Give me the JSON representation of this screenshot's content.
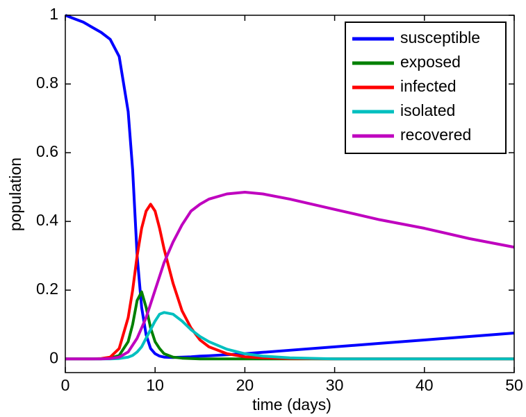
{
  "chart_data": {
    "type": "line",
    "x_label": "time (days)",
    "y_label": "population",
    "x": [
      0,
      1,
      2,
      3,
      4,
      5,
      6,
      7,
      7.5,
      8,
      8.5,
      9,
      9.5,
      10,
      10.5,
      11,
      12,
      13,
      14,
      15,
      16,
      18,
      20,
      22,
      25,
      30,
      35,
      40,
      45,
      50
    ],
    "series": [
      {
        "name": "susceptible",
        "color": "#0000ff",
        "values": [
          1,
          0.99,
          0.98,
          0.965,
          0.95,
          0.93,
          0.88,
          0.72,
          0.55,
          0.3,
          0.15,
          0.07,
          0.03,
          0.015,
          0.008,
          0.005,
          0.004,
          0.005,
          0.006,
          0.008,
          0.009,
          0.012,
          0.015,
          0.019,
          0.025,
          0.035,
          0.045,
          0.055,
          0.065,
          0.075
        ]
      },
      {
        "name": "exposed",
        "color": "#008000",
        "values": [
          0,
          0,
          0,
          0,
          0,
          0.002,
          0.01,
          0.05,
          0.1,
          0.17,
          0.195,
          0.15,
          0.09,
          0.05,
          0.03,
          0.015,
          0.005,
          0.002,
          0.001,
          0,
          0,
          0,
          0,
          0,
          0,
          0,
          0,
          0,
          0,
          0
        ]
      },
      {
        "name": "infected",
        "color": "#ff0000",
        "values": [
          0,
          0,
          0,
          0,
          0.001,
          0.005,
          0.03,
          0.12,
          0.2,
          0.3,
          0.38,
          0.43,
          0.45,
          0.43,
          0.38,
          0.32,
          0.22,
          0.14,
          0.09,
          0.055,
          0.035,
          0.015,
          0.006,
          0.003,
          0.001,
          0,
          0,
          0,
          0,
          0
        ]
      },
      {
        "name": "isolated",
        "color": "#00bfbf",
        "values": [
          0,
          0,
          0,
          0,
          0,
          0,
          0.001,
          0.005,
          0.01,
          0.02,
          0.035,
          0.06,
          0.085,
          0.11,
          0.13,
          0.135,
          0.13,
          0.11,
          0.085,
          0.065,
          0.05,
          0.028,
          0.015,
          0.008,
          0.003,
          0,
          0,
          0,
          0,
          0
        ]
      },
      {
        "name": "recovered",
        "color": "#bf00bf",
        "values": [
          0,
          0,
          0,
          0,
          0,
          0.001,
          0.005,
          0.02,
          0.04,
          0.06,
          0.09,
          0.12,
          0.16,
          0.2,
          0.24,
          0.28,
          0.34,
          0.39,
          0.43,
          0.45,
          0.465,
          0.48,
          0.485,
          0.48,
          0.465,
          0.435,
          0.405,
          0.38,
          0.35,
          0.325
        ]
      }
    ],
    "xlim": [
      0,
      50
    ],
    "xticks": [
      0,
      10,
      20,
      30,
      40,
      50
    ],
    "ylim": [
      -0.04,
      1
    ],
    "yticks": [
      0,
      0.2,
      0.4,
      0.6,
      0.8,
      1
    ],
    "grid": false,
    "legend": "upper right"
  }
}
